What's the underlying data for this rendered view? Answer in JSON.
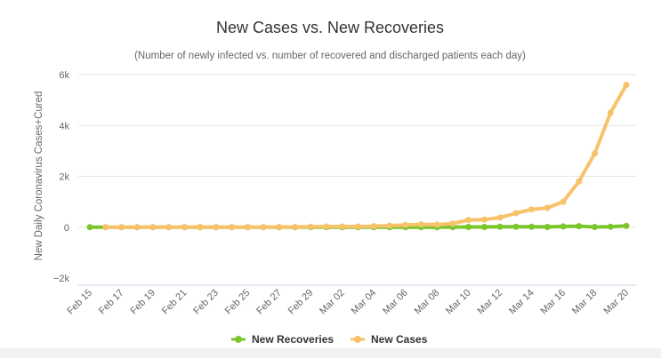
{
  "chart_data": {
    "type": "line",
    "title": "New Cases vs. New Recoveries",
    "subtitle": "(Number of newly infected vs. number of recovered and discharged patients each day)",
    "ylabel": "New Daily Coronavirus Cases+Cured",
    "xlabel": "",
    "ylim": [
      -2000,
      6000
    ],
    "yticks": [
      -2000,
      0,
      2000,
      4000,
      6000
    ],
    "ytick_labels": [
      "−2k",
      "0",
      "2k",
      "4k",
      "6k"
    ],
    "grid": true,
    "legend_position": "bottom-center",
    "x": [
      "Feb 15",
      "Feb 16",
      "Feb 17",
      "Feb 18",
      "Feb 19",
      "Feb 20",
      "Feb 21",
      "Feb 22",
      "Feb 23",
      "Feb 24",
      "Feb 25",
      "Feb 26",
      "Feb 27",
      "Feb 28",
      "Feb 29",
      "Mar 01",
      "Mar 02",
      "Mar 03",
      "Mar 04",
      "Mar 05",
      "Mar 06",
      "Mar 07",
      "Mar 08",
      "Mar 09",
      "Mar 10",
      "Mar 11",
      "Mar 12",
      "Mar 13",
      "Mar 14",
      "Mar 15",
      "Mar 16",
      "Mar 17",
      "Mar 18",
      "Mar 19",
      "Mar 20"
    ],
    "xtick_labels": [
      "Feb 15",
      "Feb 17",
      "Feb 19",
      "Feb 21",
      "Feb 23",
      "Feb 25",
      "Feb 27",
      "Feb 29",
      "Mar 02",
      "Mar 04",
      "Mar 06",
      "Mar 08",
      "Mar 10",
      "Mar 12",
      "Mar 14",
      "Mar 16",
      "Mar 18",
      "Mar 20"
    ],
    "series": [
      {
        "name": "New Recoveries",
        "color": "#7cc62b",
        "values": [
          0,
          0,
          0,
          0,
          0,
          0,
          0,
          0,
          0,
          0,
          0,
          0,
          0,
          0,
          0,
          0,
          0,
          0,
          0,
          0,
          0,
          5,
          0,
          5,
          10,
          10,
          20,
          15,
          15,
          10,
          30,
          40,
          10,
          15,
          50
        ]
      },
      {
        "name": "New Cases",
        "color": "#f7c26a",
        "values": [
          null,
          0,
          0,
          0,
          0,
          0,
          5,
          10,
          0,
          0,
          5,
          5,
          10,
          10,
          15,
          25,
          25,
          25,
          40,
          60,
          90,
          110,
          100,
          145,
          280,
          300,
          380,
          550,
          700,
          760,
          1000,
          1800,
          2900,
          4500,
          5600
        ]
      }
    ]
  }
}
